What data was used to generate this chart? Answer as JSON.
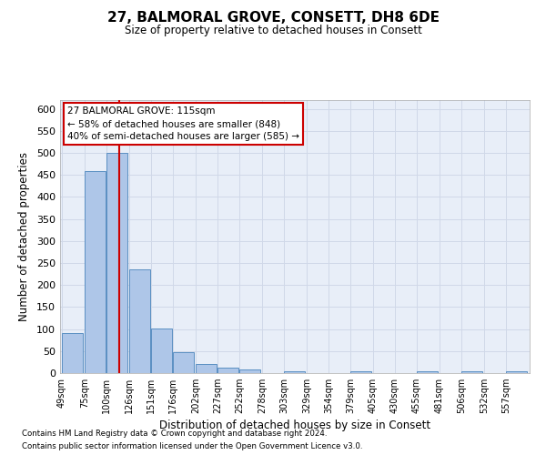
{
  "title": "27, BALMORAL GROVE, CONSETT, DH8 6DE",
  "subtitle": "Size of property relative to detached houses in Consett",
  "xlabel": "Distribution of detached houses by size in Consett",
  "ylabel": "Number of detached properties",
  "bin_labels": [
    "49sqm",
    "75sqm",
    "100sqm",
    "126sqm",
    "151sqm",
    "176sqm",
    "202sqm",
    "227sqm",
    "252sqm",
    "278sqm",
    "303sqm",
    "329sqm",
    "354sqm",
    "379sqm",
    "405sqm",
    "430sqm",
    "455sqm",
    "481sqm",
    "506sqm",
    "532sqm",
    "557sqm"
  ],
  "bar_values": [
    90,
    458,
    500,
    235,
    102,
    47,
    20,
    13,
    8,
    0,
    5,
    0,
    0,
    5,
    0,
    0,
    5,
    0,
    5,
    0,
    5
  ],
  "bar_color": "#aec6e8",
  "bar_edge_color": "#5a8fc2",
  "property_line_x": 115,
  "property_line_label": "27 BALMORAL GROVE: 115sqm",
  "annotation_line1": "← 58% of detached houses are smaller (848)",
  "annotation_line2": "40% of semi-detached houses are larger (585) →",
  "annotation_box_color": "#ffffff",
  "annotation_box_edge": "#cc0000",
  "red_line_color": "#cc0000",
  "grid_color": "#d0d8e8",
  "background_color": "#e8eef8",
  "ylim": [
    0,
    620
  ],
  "yticks": [
    0,
    50,
    100,
    150,
    200,
    250,
    300,
    350,
    400,
    450,
    500,
    550,
    600
  ],
  "footnote1": "Contains HM Land Registry data © Crown copyright and database right 2024.",
  "footnote2": "Contains public sector information licensed under the Open Government Licence v3.0.",
  "bin_width": 25
}
